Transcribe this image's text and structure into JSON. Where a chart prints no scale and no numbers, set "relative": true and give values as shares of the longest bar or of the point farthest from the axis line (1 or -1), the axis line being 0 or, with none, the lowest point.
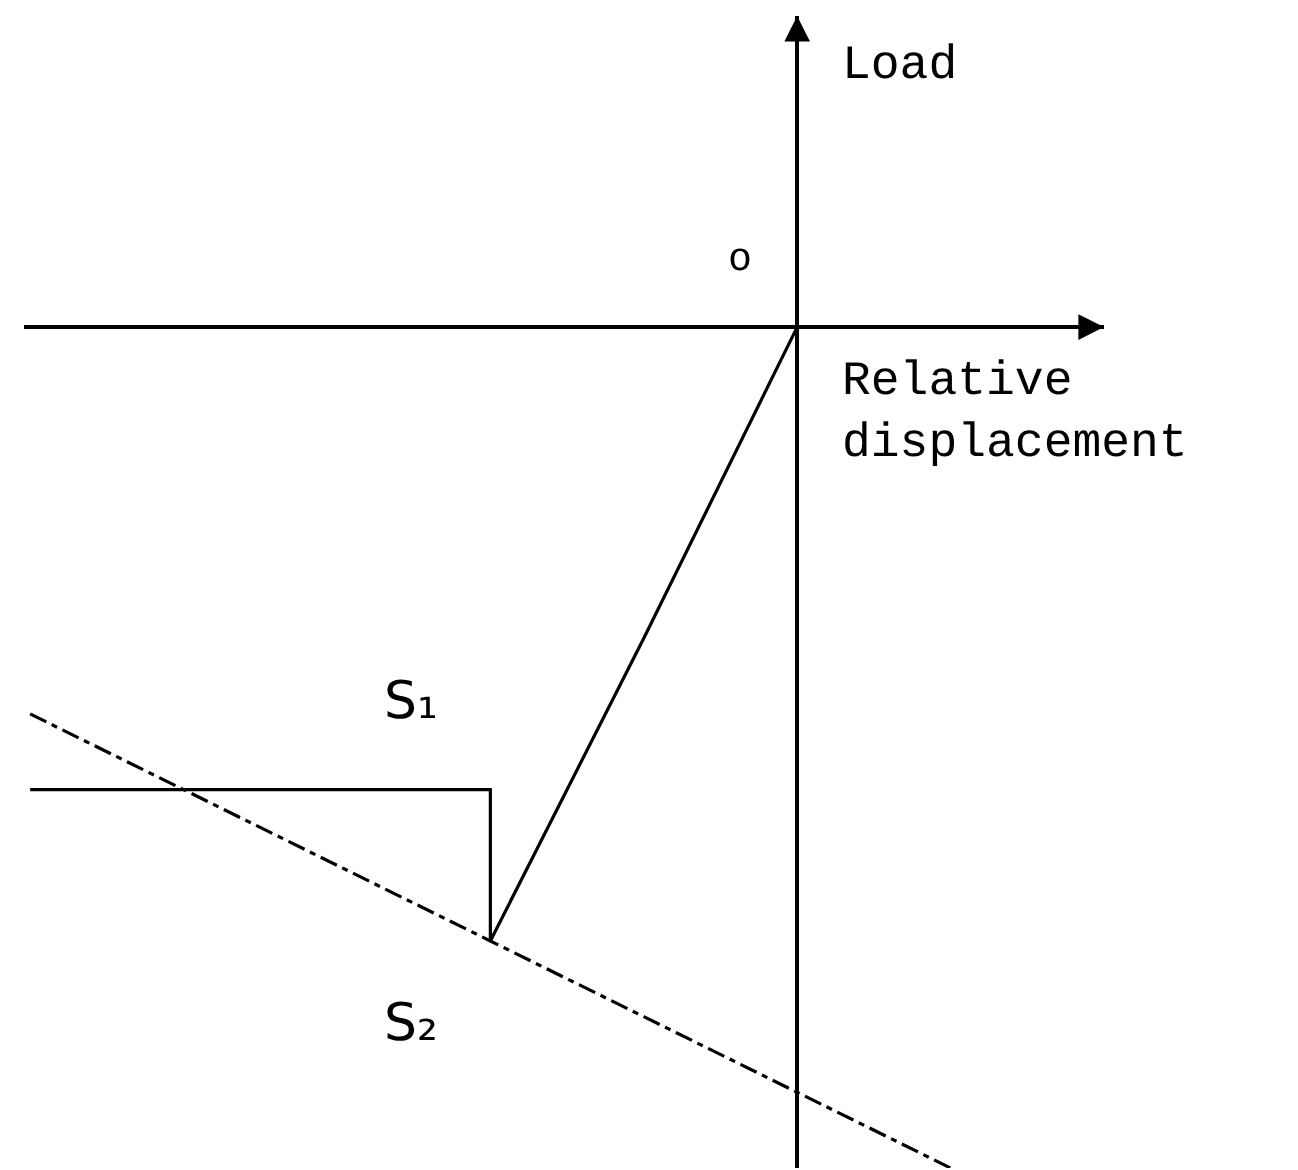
{
  "chart_data": {
    "type": "line",
    "xlabel": "Relative displacement",
    "ylabel": "Load",
    "relative": true,
    "marker": "none",
    "annotations": [
      "o"
    ],
    "categories": [
      null,
      null,
      null,
      null,
      null,
      null,
      null
    ],
    "series": [
      {
        "name": "S₁",
        "type": "step",
        "color": "#000000",
        "values": [
          -0.55,
          -0.55,
          -0.55,
          -0.73,
          null,
          null,
          null
        ],
        "line_style": "solid"
      },
      {
        "color": "#000000",
        "values": [
          null,
          null,
          null,
          -0.73,
          -0.37,
          0,
          null
        ],
        "line_style": "solid"
      },
      {
        "name": "S₂",
        "color": "#000000",
        "values": [
          -0.46,
          -0.55,
          -0.64,
          -0.73,
          -0.82,
          -0.91,
          -1.0
        ],
        "line_style": "dashdot"
      }
    ]
  }
}
